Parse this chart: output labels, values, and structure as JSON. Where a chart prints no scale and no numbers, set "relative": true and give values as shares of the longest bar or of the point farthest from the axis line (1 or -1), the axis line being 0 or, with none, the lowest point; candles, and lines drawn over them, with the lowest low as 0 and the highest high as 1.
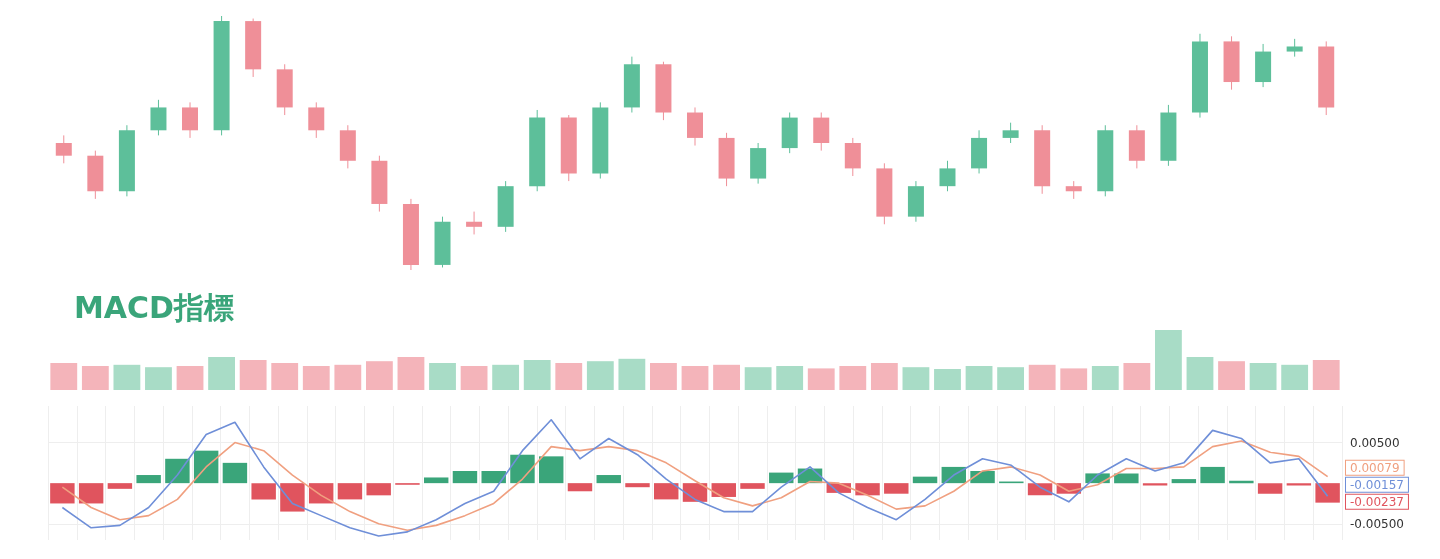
{
  "chart_data": [
    {
      "type": "candlestick",
      "relative": true,
      "categories": [
        null,
        null,
        null,
        null,
        null,
        null,
        null,
        null,
        null,
        null,
        null,
        null,
        null,
        null,
        null,
        null,
        null,
        null,
        null,
        null,
        null,
        null,
        null,
        null,
        null,
        null,
        null,
        null,
        null,
        null,
        null,
        null,
        null,
        null,
        null,
        null,
        null,
        null,
        null,
        null,
        null
      ],
      "ohlc": [
        [
          0.5,
          0.53,
          0.42,
          0.45
        ],
        [
          0.45,
          0.47,
          0.28,
          0.31
        ],
        [
          0.31,
          0.57,
          0.29,
          0.55
        ],
        [
          0.55,
          0.67,
          0.53,
          0.64
        ],
        [
          0.64,
          0.66,
          0.52,
          0.55
        ],
        [
          0.55,
          1.0,
          0.53,
          0.98
        ],
        [
          0.98,
          0.99,
          0.76,
          0.79
        ],
        [
          0.79,
          0.81,
          0.61,
          0.64
        ],
        [
          0.64,
          0.66,
          0.52,
          0.55
        ],
        [
          0.55,
          0.57,
          0.4,
          0.43
        ],
        [
          0.43,
          0.45,
          0.23,
          0.26
        ],
        [
          0.26,
          0.28,
          0.0,
          0.02
        ],
        [
          0.02,
          0.21,
          0.01,
          0.19
        ],
        [
          0.19,
          0.23,
          0.14,
          0.17
        ],
        [
          0.17,
          0.35,
          0.15,
          0.33
        ],
        [
          0.33,
          0.63,
          0.31,
          0.6
        ],
        [
          0.6,
          0.61,
          0.35,
          0.38
        ],
        [
          0.38,
          0.66,
          0.36,
          0.64
        ],
        [
          0.64,
          0.84,
          0.62,
          0.81
        ],
        [
          0.81,
          0.82,
          0.59,
          0.62
        ],
        [
          0.62,
          0.64,
          0.49,
          0.52
        ],
        [
          0.52,
          0.54,
          0.33,
          0.36
        ],
        [
          0.36,
          0.5,
          0.34,
          0.48
        ],
        [
          0.48,
          0.62,
          0.46,
          0.6
        ],
        [
          0.6,
          0.62,
          0.47,
          0.5
        ],
        [
          0.5,
          0.52,
          0.37,
          0.4
        ],
        [
          0.4,
          0.42,
          0.18,
          0.21
        ],
        [
          0.21,
          0.35,
          0.19,
          0.33
        ],
        [
          0.33,
          0.43,
          0.31,
          0.4
        ],
        [
          0.4,
          0.55,
          0.38,
          0.52
        ],
        [
          0.52,
          0.58,
          0.5,
          0.55
        ],
        [
          0.55,
          0.57,
          0.3,
          0.33
        ],
        [
          0.33,
          0.35,
          0.28,
          0.31
        ],
        [
          0.31,
          0.57,
          0.29,
          0.55
        ],
        [
          0.55,
          0.57,
          0.4,
          0.43
        ],
        [
          0.43,
          0.65,
          0.41,
          0.62
        ],
        [
          0.62,
          0.93,
          0.6,
          0.9
        ],
        [
          0.9,
          0.92,
          0.71,
          0.74
        ],
        [
          0.74,
          0.89,
          0.72,
          0.86
        ],
        [
          0.86,
          0.91,
          0.84,
          0.88
        ],
        [
          0.88,
          0.9,
          0.61,
          0.64
        ]
      ],
      "colors": [
        "#ef8f98",
        "#ef8f98",
        "#5dbf9a",
        "#5dbf9a",
        "#ef8f98",
        "#5dbf9a",
        "#ef8f98",
        "#ef8f98",
        "#ef8f98",
        "#ef8f98",
        "#ef8f98",
        "#ef8f98",
        "#5dbf9a",
        "#ef8f98",
        "#5dbf9a",
        "#5dbf9a",
        "#ef8f98",
        "#5dbf9a",
        "#5dbf9a",
        "#ef8f98",
        "#ef8f98",
        "#ef8f98",
        "#5dbf9a",
        "#5dbf9a",
        "#ef8f98",
        "#ef8f98",
        "#ef8f98",
        "#5dbf9a",
        "#5dbf9a",
        "#5dbf9a",
        "#5dbf9a",
        "#ef8f98",
        "#ef8f98",
        "#5dbf9a",
        "#ef8f98",
        "#5dbf9a",
        "#5dbf9a",
        "#ef8f98",
        "#5dbf9a",
        "#5dbf9a",
        "#ef8f98"
      ]
    },
    {
      "type": "bar",
      "relative": true,
      "annotations": [
        "MACD指標"
      ],
      "categories": [
        null,
        null,
        null,
        null,
        null,
        null,
        null,
        null,
        null,
        null,
        null,
        null,
        null,
        null,
        null,
        null,
        null,
        null,
        null,
        null,
        null,
        null,
        null,
        null,
        null,
        null,
        null,
        null,
        null,
        null,
        null,
        null,
        null,
        null,
        null,
        null,
        null,
        null,
        null,
        null,
        null
      ],
      "values": [
        0.45,
        0.4,
        0.42,
        0.38,
        0.4,
        0.55,
        0.5,
        0.45,
        0.4,
        0.42,
        0.48,
        0.55,
        0.45,
        0.4,
        0.42,
        0.5,
        0.45,
        0.48,
        0.52,
        0.45,
        0.4,
        0.42,
        0.38,
        0.4,
        0.36,
        0.4,
        0.45,
        0.38,
        0.35,
        0.4,
        0.38,
        0.42,
        0.36,
        0.4,
        0.45,
        1,
        0.55,
        0.48,
        0.45,
        0.42,
        0.5
      ],
      "colors": [
        "#f4b4ba",
        "#f4b4ba",
        "#a8dcc6",
        "#a8dcc6",
        "#f4b4ba",
        "#a8dcc6",
        "#f4b4ba",
        "#f4b4ba",
        "#f4b4ba",
        "#f4b4ba",
        "#f4b4ba",
        "#f4b4ba",
        "#a8dcc6",
        "#f4b4ba",
        "#a8dcc6",
        "#a8dcc6",
        "#f4b4ba",
        "#a8dcc6",
        "#a8dcc6",
        "#f4b4ba",
        "#f4b4ba",
        "#f4b4ba",
        "#a8dcc6",
        "#a8dcc6",
        "#f4b4ba",
        "#f4b4ba",
        "#f4b4ba",
        "#a8dcc6",
        "#a8dcc6",
        "#a8dcc6",
        "#a8dcc6",
        "#f4b4ba",
        "#f4b4ba",
        "#a8dcc6",
        "#f4b4ba",
        "#a8dcc6",
        "#a8dcc6",
        "#f4b4ba",
        "#a8dcc6",
        "#a8dcc6",
        "#f4b4ba"
      ]
    },
    {
      "type": "line",
      "grid": true,
      "marker": "none",
      "tick_labels": "y",
      "ylim": [
        -0.007,
        0.0095
      ],
      "yticks": [
        {
          "value": 0.005,
          "label": "0.00500"
        },
        {
          "value": -0.005,
          "label": "-0.00500"
        }
      ],
      "annotations": [
        "0.00079",
        "-0.00157",
        "-0.00237"
      ],
      "categories": [
        null,
        null,
        null,
        null,
        null,
        null,
        null,
        null,
        null,
        null,
        null,
        null,
        null,
        null,
        null,
        null,
        null,
        null,
        null,
        null,
        null,
        null,
        null,
        null,
        null,
        null,
        null,
        null,
        null,
        null,
        null,
        null,
        null,
        null,
        null,
        null,
        null,
        null,
        null,
        null,
        null,
        null,
        null,
        null,
        null
      ],
      "series": [
        {
          "color": "#f0a080",
          "values": [
            -0.0005,
            -0.003,
            -0.0045,
            -0.004,
            -0.002,
            0.002,
            0.005,
            0.004,
            0.001,
            -0.0015,
            -0.0035,
            -0.005,
            -0.0058,
            -0.0052,
            -0.004,
            -0.0025,
            0.0005,
            0.0045,
            0.004,
            0.0045,
            0.004,
            0.0025,
            0.0003,
            -0.0018,
            -0.0028,
            -0.0018,
            0.0002,
            0.0,
            -0.0015,
            -0.0032,
            -0.0028,
            -0.001,
            0.0015,
            0.002,
            0.001,
            -0.001,
            -0.0002,
            0.0018,
            0.0018,
            0.002,
            0.0045,
            0.0052,
            0.0038,
            0.0033,
            0.0008
          ]
        },
        {
          "color": "#6f8fd8",
          "values": [
            -0.003,
            -0.0055,
            -0.0052,
            -0.003,
            0.001,
            0.006,
            0.0075,
            0.002,
            -0.0025,
            -0.004,
            -0.0055,
            -0.0065,
            -0.006,
            -0.0045,
            -0.0025,
            -0.001,
            0.004,
            0.0078,
            0.003,
            0.0055,
            0.0035,
            0.0005,
            -0.002,
            -0.0035,
            -0.0035,
            -0.0005,
            0.002,
            -0.0012,
            -0.003,
            -0.0045,
            -0.002,
            0.001,
            0.003,
            0.0022,
            -0.0005,
            -0.0023,
            0.001,
            0.003,
            0.0015,
            0.0025,
            0.0065,
            0.0055,
            0.0025,
            0.003,
            -0.0016
          ]
        },
        {
          "type": "bar",
          "color": "#e0545e",
          "values": [
            -0.0025,
            -0.0025,
            -0.0007,
            0.001,
            0.003,
            0.004,
            0.0025,
            -0.002,
            -0.0035,
            -0.0025,
            -0.002,
            -0.0015,
            -0.0002,
            0.0007,
            0.0015,
            0.0015,
            0.0035,
            0.0033,
            -0.001,
            0.001,
            -0.0005,
            -0.002,
            -0.0023,
            -0.0017,
            -0.0007,
            0.0013,
            0.0018,
            -0.0012,
            -0.0015,
            -0.0013,
            0.0008,
            0.002,
            0.0015,
            0.0002,
            -0.0015,
            -0.0013,
            0.0012,
            0.0012,
            -0.0003,
            0.0005,
            0.002,
            0.0003,
            -0.0013,
            -0.0003,
            -0.0024
          ],
          "colors": [
            "#e0545e",
            "#e0545e",
            "#e0545e",
            "#3aa57a",
            "#3aa57a",
            "#3aa57a",
            "#3aa57a",
            "#e0545e",
            "#e0545e",
            "#e0545e",
            "#e0545e",
            "#e0545e",
            "#e0545e",
            "#3aa57a",
            "#3aa57a",
            "#3aa57a",
            "#3aa57a",
            "#3aa57a",
            "#e0545e",
            "#3aa57a",
            "#e0545e",
            "#e0545e",
            "#e0545e",
            "#e0545e",
            "#e0545e",
            "#3aa57a",
            "#3aa57a",
            "#e0545e",
            "#e0545e",
            "#e0545e",
            "#3aa57a",
            "#3aa57a",
            "#3aa57a",
            "#3aa57a",
            "#e0545e",
            "#e0545e",
            "#3aa57a",
            "#3aa57a",
            "#e0545e",
            "#3aa57a",
            "#3aa57a",
            "#3aa57a",
            "#e0545e",
            "#e0545e",
            "#e0545e"
          ]
        }
      ]
    }
  ]
}
